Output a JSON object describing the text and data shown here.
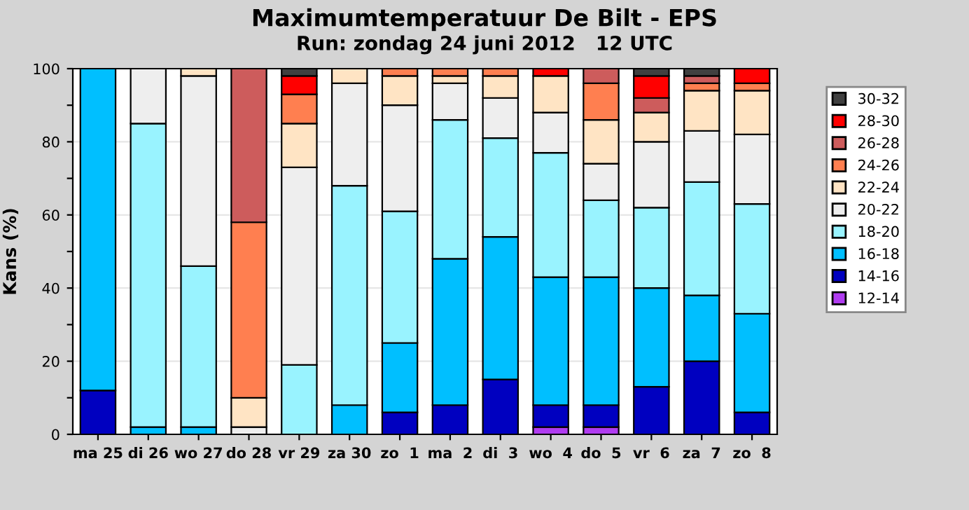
{
  "chart_data": {
    "type": "bar",
    "stacked": true,
    "title": "Maximumtemperatuur De Bilt - EPS",
    "subtitle": "Run: zondag 24 juni 2012   12 UTC",
    "ylabel": "Kans (%)",
    "categories": [
      "ma 25",
      "di 26",
      "wo 27",
      "do 28",
      "vr 29",
      "za 30",
      "zo  1",
      "ma  2",
      "di  3",
      "wo  4",
      "do  5",
      "vr  6",
      "za  7",
      "zo  8"
    ],
    "series": [
      {
        "name": "12-14",
        "color": "#b03cf0",
        "values": [
          0,
          0,
          0,
          0,
          0,
          0,
          0,
          0,
          0,
          2,
          2,
          0,
          0,
          0
        ]
      },
      {
        "name": "14-16",
        "color": "#0000c0",
        "values": [
          12,
          0,
          0,
          0,
          0,
          0,
          6,
          8,
          15,
          6,
          6,
          13,
          20,
          6
        ]
      },
      {
        "name": "16-18",
        "color": "#00bfff",
        "values": [
          88,
          2,
          2,
          0,
          0,
          8,
          19,
          40,
          39,
          35,
          35,
          27,
          18,
          27
        ]
      },
      {
        "name": "18-20",
        "color": "#99f3ff",
        "values": [
          0,
          83,
          44,
          0,
          19,
          60,
          36,
          38,
          27,
          34,
          21,
          22,
          31,
          30
        ]
      },
      {
        "name": "20-22",
        "color": "#eeeeee",
        "values": [
          0,
          15,
          52,
          2,
          54,
          28,
          29,
          10,
          11,
          11,
          10,
          18,
          14,
          19
        ]
      },
      {
        "name": "22-24",
        "color": "#ffe4c4",
        "values": [
          0,
          0,
          2,
          8,
          12,
          4,
          8,
          2,
          6,
          10,
          12,
          8,
          11,
          12
        ]
      },
      {
        "name": "24-26",
        "color": "#ff7f50",
        "values": [
          0,
          0,
          0,
          48,
          8,
          0,
          2,
          2,
          2,
          0,
          10,
          0,
          2,
          2
        ]
      },
      {
        "name": "26-28",
        "color": "#cd5c5c",
        "values": [
          0,
          0,
          0,
          42,
          0,
          0,
          0,
          0,
          0,
          0,
          4,
          4,
          2,
          0
        ]
      },
      {
        "name": "28-30",
        "color": "#ff0000",
        "values": [
          0,
          0,
          0,
          0,
          5,
          0,
          0,
          0,
          0,
          2,
          0,
          6,
          0,
          4
        ]
      },
      {
        "name": "30-32",
        "color": "#404040",
        "values": [
          0,
          0,
          0,
          0,
          2,
          0,
          0,
          0,
          0,
          0,
          0,
          2,
          2,
          0
        ]
      }
    ],
    "ylim": [
      0,
      100
    ],
    "yticks": [
      0,
      {
        "value": 10,
        "label": null
      },
      20,
      {
        "value": 30,
        "label": null
      },
      40,
      {
        "value": 50,
        "label": null
      },
      60,
      {
        "value": 70,
        "label": null
      },
      80,
      {
        "value": 90,
        "label": null
      },
      100
    ],
    "grid": "y",
    "legend": "right"
  }
}
